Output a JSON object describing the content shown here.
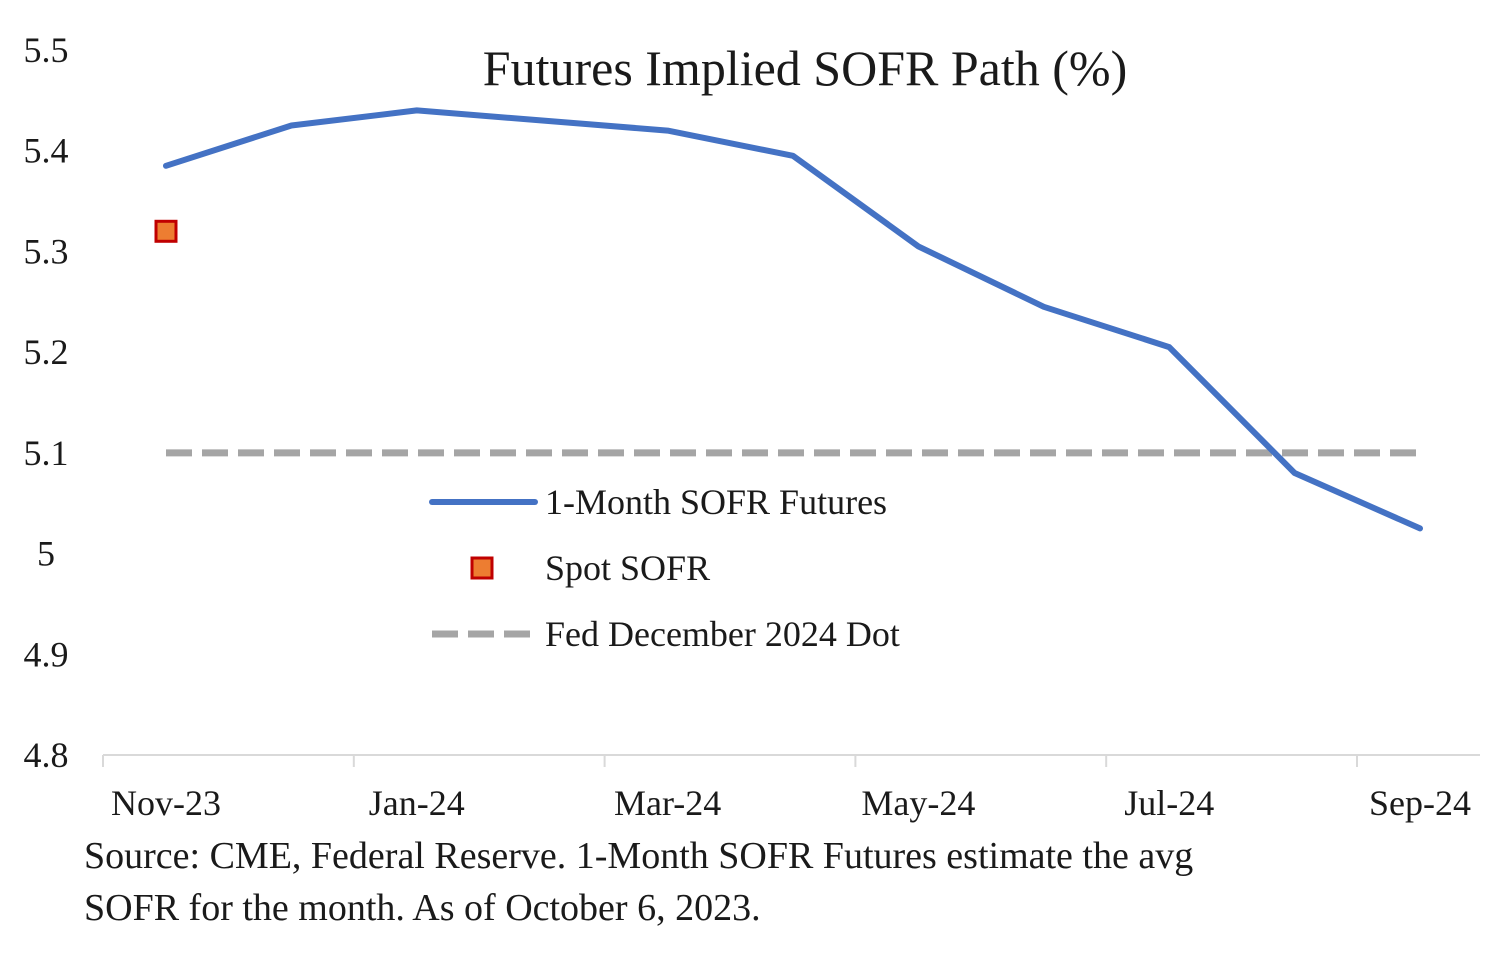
{
  "chart_data": {
    "type": "line",
    "title": "Futures Implied SOFR Path (%)",
    "xlabel": "",
    "ylabel": "",
    "ylim": [
      4.8,
      5.5
    ],
    "yticks": [
      "4.8",
      "4.9",
      "5",
      "5.1",
      "5.2",
      "5.3",
      "5.4",
      "5.5"
    ],
    "ytick_values": [
      4.8,
      4.9,
      5.0,
      5.1,
      5.2,
      5.3,
      5.4,
      5.5
    ],
    "x": [
      "Nov-23",
      "Dec-23",
      "Jan-24",
      "Feb-24",
      "Mar-24",
      "Apr-24",
      "May-24",
      "Jun-24",
      "Jul-24",
      "Aug-24",
      "Sep-24"
    ],
    "xtick_labels": [
      "Nov-23",
      "Jan-24",
      "Mar-24",
      "May-24",
      "Jul-24",
      "Sep-24"
    ],
    "series": [
      {
        "name": "1-Month SOFR Futures",
        "kind": "line",
        "color": "#4472c4",
        "values": [
          5.385,
          5.425,
          5.44,
          5.43,
          5.42,
          5.395,
          5.305,
          5.245,
          5.205,
          5.08,
          5.025
        ]
      },
      {
        "name": "Spot SOFR",
        "kind": "marker",
        "color": "#ed7d31",
        "edge_color": "#c00000",
        "x": "Nov-23",
        "value": 5.32
      },
      {
        "name": "Fed December 2024 Dot",
        "kind": "dashed-line",
        "color": "#a5a5a5",
        "value": 5.1
      }
    ],
    "grid": false,
    "legend_position": "center"
  },
  "footnote": {
    "line1": "Source: CME,  Federal Reserve. 1-Month SOFR Futures estimate the avg",
    "line2": "SOFR for the month. As of October 6, 2023."
  }
}
